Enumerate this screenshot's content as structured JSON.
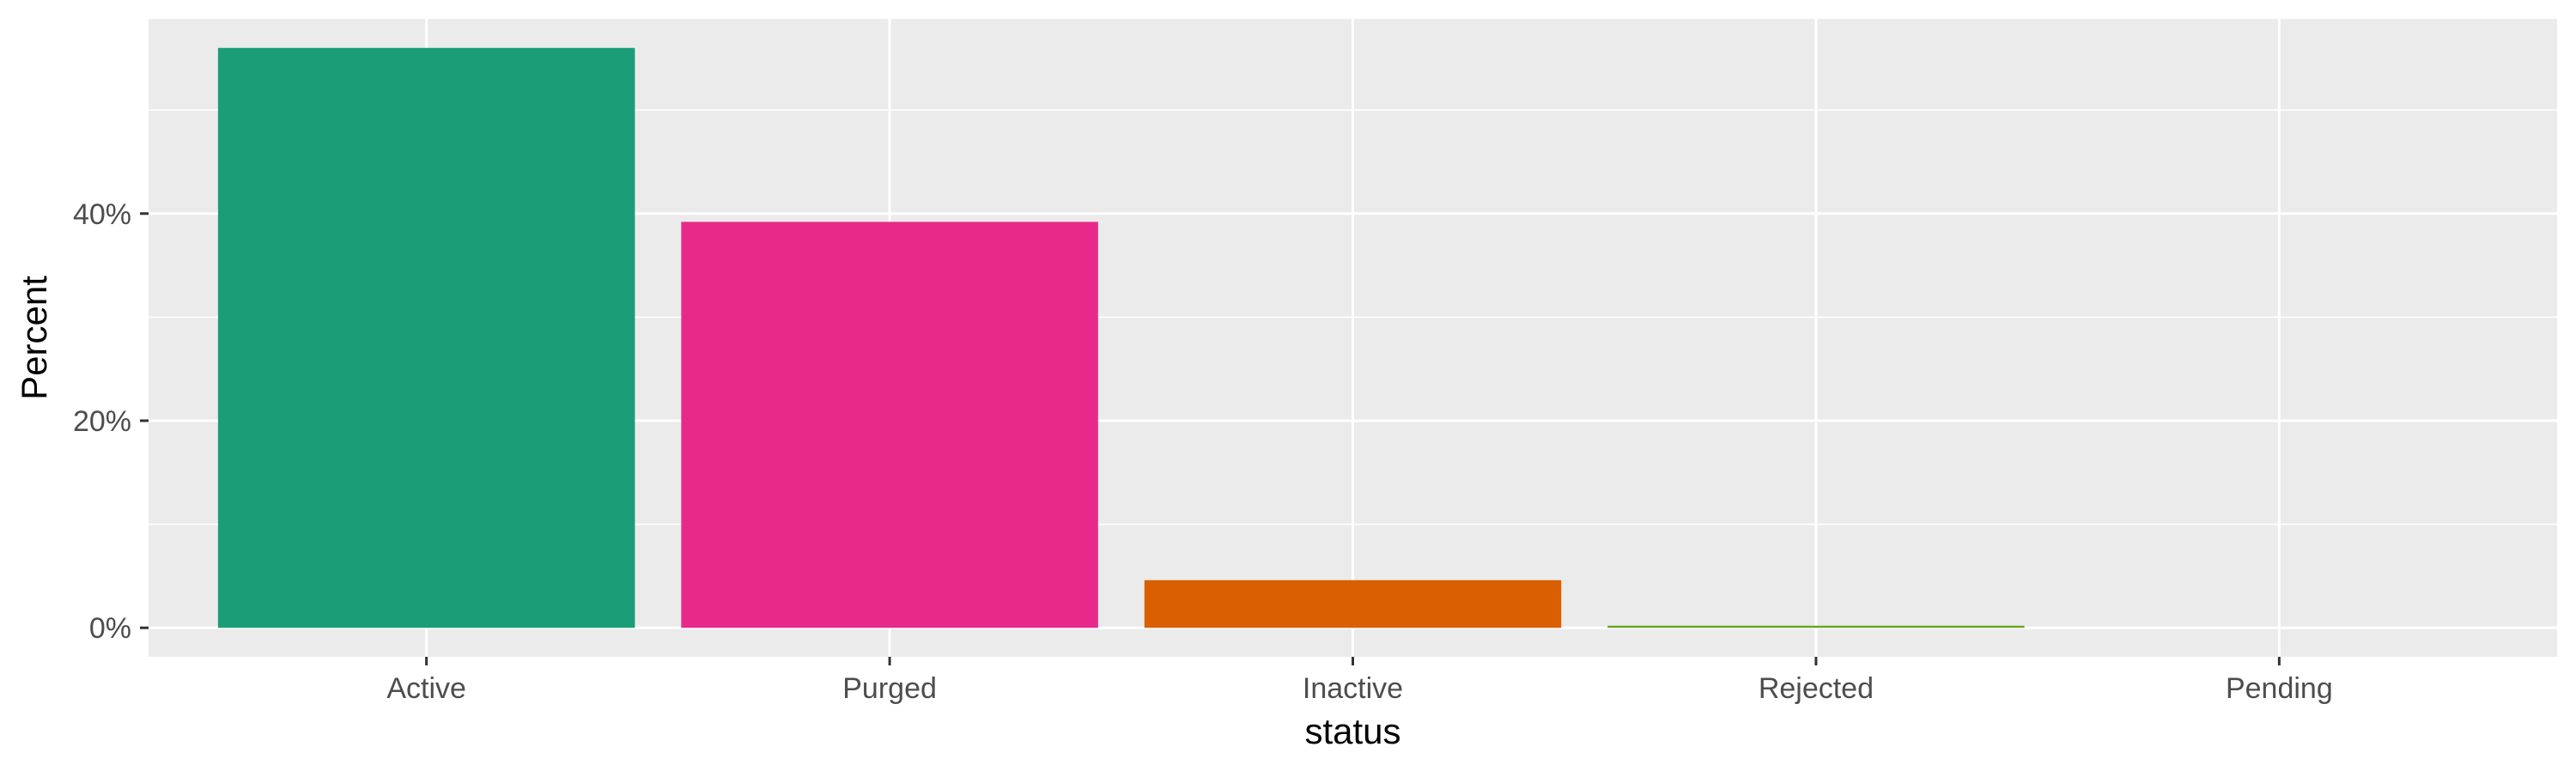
{
  "chart_data": {
    "type": "bar",
    "xlabel": "status",
    "ylabel": "Percent",
    "categories": [
      "Active",
      "Purged",
      "Inactive",
      "Rejected",
      "Pending"
    ],
    "values": [
      56.0,
      39.2,
      4.6,
      0.2,
      0.0
    ],
    "colors": [
      "#1b9e77",
      "#e7298a",
      "#d95f02",
      "#66a61e",
      "#e6ab02"
    ],
    "y_ticks": [
      0,
      20,
      40
    ],
    "y_tick_labels": [
      "0%",
      "20%",
      "40%"
    ],
    "ylim": [
      -2.8,
      58.8
    ],
    "grid": true,
    "legend": "none",
    "panel_background": "#ebebeb"
  }
}
